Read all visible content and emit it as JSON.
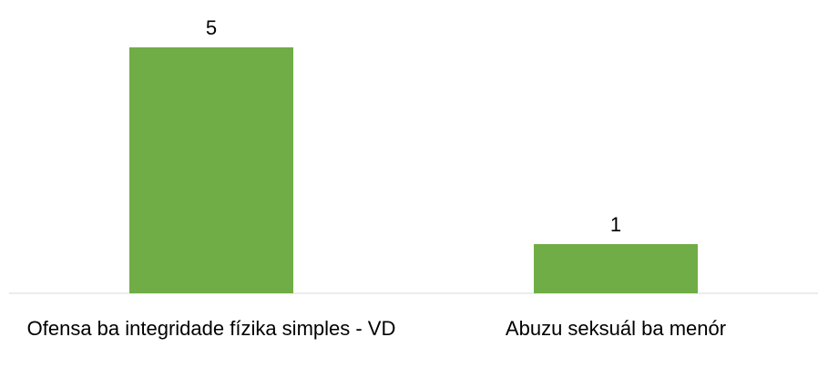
{
  "chart_data": {
    "type": "bar",
    "categories": [
      "Ofensa ba integridade fízika simples - VD",
      "Abuzu seksuál ba menór"
    ],
    "values": [
      5,
      1
    ],
    "color": "#70ad47"
  }
}
